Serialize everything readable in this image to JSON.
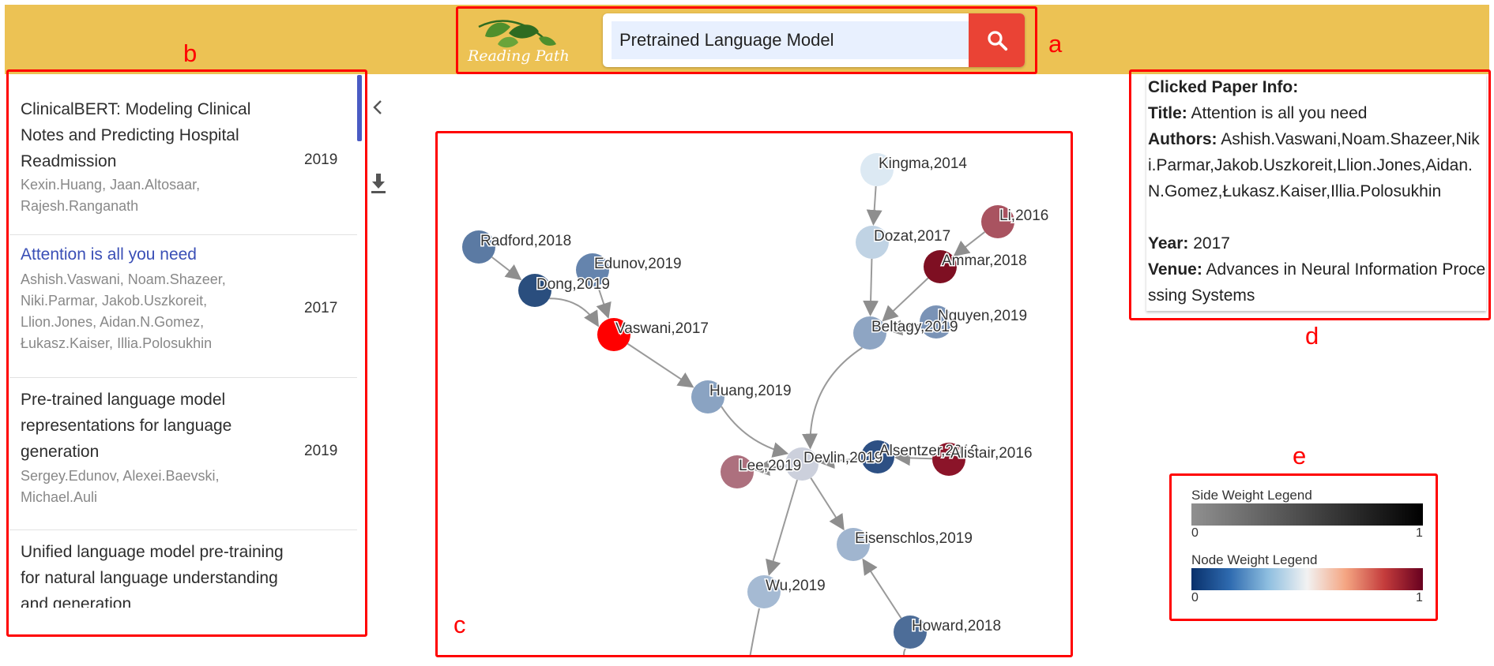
{
  "app": {
    "logo_text": "Reading Path",
    "search": {
      "value": "Pretrained Language Model"
    }
  },
  "annotations": {
    "a": "a",
    "b": "b",
    "c": "c",
    "d": "d",
    "e": "e"
  },
  "papers": [
    {
      "title": "ClinicalBERT: Modeling Clinical Notes and Predicting Hospital Readmission",
      "authors": "Kexin.Huang, Jaan.Altosaar, Rajesh.Ranganath",
      "year": "2019"
    },
    {
      "title": "Attention is all you need",
      "authors": "Ashish.Vaswani, Noam.Shazeer, Niki.Parmar, Jakob.Uszkoreit, Llion.Jones, Aidan.N.Gomez, Łukasz.Kaiser, Illia.Polosukhin",
      "year": "2017"
    },
    {
      "title": "Pre-trained language model representations for language generation",
      "authors": "Sergey.Edunov, Alexei.Baevski, Michael.Auli",
      "year": "2019"
    },
    {
      "title": "Unified language model pre-training for natural language understanding and generation",
      "authors": "",
      "year": ""
    }
  ],
  "graph": {
    "nodes": {
      "kingma": {
        "label": "Kingma,2014",
        "color": "#dce9f3"
      },
      "li": {
        "label": "Li,2016",
        "color": "#a95360"
      },
      "dozat": {
        "label": "Dozat,2017",
        "color": "#c0d3e4"
      },
      "ammar": {
        "label": "Ammar,2018",
        "color": "#7e0f22"
      },
      "nguyen": {
        "label": "Nguyen,2019",
        "color": "#7a93b6"
      },
      "beltagy": {
        "label": "Beltagy,2019",
        "color": "#8ea5c3"
      },
      "radford": {
        "label": "Radford,2018",
        "color": "#5b7aa3"
      },
      "edunov": {
        "label": "Edunov,2019",
        "color": "#6584ad"
      },
      "dong": {
        "label": "Dong,2019",
        "color": "#2a4e7e"
      },
      "vaswani": {
        "label": "Vaswani,2017",
        "color": "#ff0000"
      },
      "huang": {
        "label": "Huang,2019",
        "color": "#8aa3c2"
      },
      "devlin": {
        "label": "Devlin,2019",
        "color": "#ccd0dc"
      },
      "lee": {
        "label": "Lee,2019",
        "color": "#ad707e"
      },
      "alsentzer": {
        "label": "Alsentzer,2019",
        "color": "#2d5084"
      },
      "alistair": {
        "label": "Alistair,2016",
        "color": "#8b1429"
      },
      "eisenschlos": {
        "label": "Eisenschlos,2019",
        "color": "#a0b5cf"
      },
      "wu": {
        "label": "Wu,2019",
        "color": "#a5bad3"
      },
      "howard": {
        "label": "Howard,2018",
        "color": "#4d6d98"
      }
    }
  },
  "paper_info": {
    "header": "Clicked Paper Info:",
    "title_key": "Title:",
    "title": "Attention is all you need",
    "authors_key": "Authors:",
    "authors": "Ashish.Vaswani,Noam.Shazeer,Niki.Parmar,Jakob.Uszkoreit,Llion.Jones,Aidan.N.Gomez,Łukasz.Kaiser,Illia.Polosukhin",
    "year_key": "Year:",
    "year": "2017",
    "venue_key": "Venue:",
    "venue": "Advances in Neural Information Processing Systems"
  },
  "legend": {
    "side_title": "Side Weight Legend",
    "node_title": "Node Weight Legend",
    "min": "0",
    "max": "1"
  },
  "icons": {
    "collapse": "chevron-left-icon",
    "download": "download-icon",
    "search": "search-icon",
    "logo": "leaf-logo-icon"
  }
}
